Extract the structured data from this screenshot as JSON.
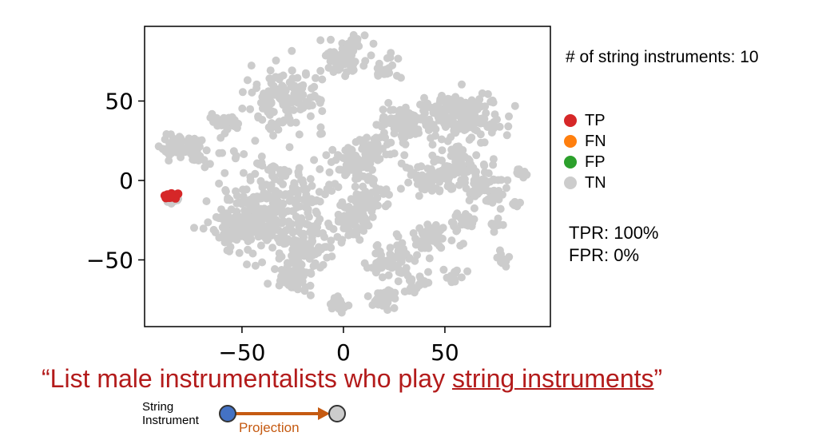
{
  "chart_data": {
    "type": "scatter",
    "title": "",
    "xlabel": "",
    "ylabel": "",
    "xlim": [
      -98,
      102
    ],
    "ylim": [
      -92,
      97
    ],
    "xticks": [
      -50,
      0,
      50
    ],
    "yticks": [
      50,
      0,
      -50
    ],
    "xtick_labels": [
      "−50",
      "0",
      "50"
    ],
    "ytick_labels": [
      "50",
      "0",
      "−50"
    ],
    "grid": false,
    "legend_placement": "right",
    "series": [
      {
        "name": "TP",
        "color": "#d62728",
        "clusters": [
          {
            "x": -85,
            "y": -10,
            "r": 2.5,
            "n": 12
          }
        ]
      },
      {
        "name": "FN",
        "color": "#ff7f0e",
        "clusters": []
      },
      {
        "name": "FP",
        "color": "#2ca02c",
        "clusters": []
      },
      {
        "name": "TN",
        "color": "#cccccc",
        "clusters": [
          {
            "x": 0,
            "y": 78,
            "r": 10,
            "n": 90
          },
          {
            "x": 20,
            "y": 70,
            "r": 6,
            "n": 20
          },
          {
            "x": -28,
            "y": 52,
            "r": 16,
            "n": 140
          },
          {
            "x": -58,
            "y": 35,
            "r": 6,
            "n": 30
          },
          {
            "x": -84,
            "y": 22,
            "r": 6,
            "n": 40
          },
          {
            "x": -73,
            "y": 18,
            "r": 7,
            "n": 40
          },
          {
            "x": -84,
            "y": -12,
            "r": 3,
            "n": 12
          },
          {
            "x": 30,
            "y": 35,
            "r": 10,
            "n": 80
          },
          {
            "x": 50,
            "y": 42,
            "r": 12,
            "n": 90
          },
          {
            "x": 65,
            "y": 40,
            "r": 12,
            "n": 90
          },
          {
            "x": 55,
            "y": 10,
            "r": 12,
            "n": 80
          },
          {
            "x": 40,
            "y": 0,
            "r": 8,
            "n": 40
          },
          {
            "x": 70,
            "y": -5,
            "r": 8,
            "n": 50
          },
          {
            "x": 5,
            "y": 10,
            "r": 10,
            "n": 60
          },
          {
            "x": 15,
            "y": 20,
            "r": 8,
            "n": 40
          },
          {
            "x": -35,
            "y": -15,
            "r": 22,
            "n": 260
          },
          {
            "x": -50,
            "y": -30,
            "r": 12,
            "n": 90
          },
          {
            "x": -20,
            "y": -40,
            "r": 12,
            "n": 90
          },
          {
            "x": -25,
            "y": -62,
            "r": 8,
            "n": 60
          },
          {
            "x": 5,
            "y": -25,
            "r": 10,
            "n": 70
          },
          {
            "x": 15,
            "y": -10,
            "r": 8,
            "n": 40
          },
          {
            "x": 25,
            "y": -50,
            "r": 10,
            "n": 70
          },
          {
            "x": 45,
            "y": -35,
            "r": 8,
            "n": 50
          },
          {
            "x": -2,
            "y": -78,
            "r": 4,
            "n": 25
          },
          {
            "x": 20,
            "y": -75,
            "r": 5,
            "n": 30
          },
          {
            "x": 35,
            "y": -65,
            "r": 5,
            "n": 20
          },
          {
            "x": 55,
            "y": -60,
            "r": 4,
            "n": 15
          },
          {
            "x": 78,
            "y": -50,
            "r": 3,
            "n": 12
          },
          {
            "x": 88,
            "y": 5,
            "r": 3,
            "n": 10
          },
          {
            "x": 85,
            "y": -15,
            "r": 2,
            "n": 8
          },
          {
            "x": 76,
            "y": -28,
            "r": 3,
            "n": 10
          },
          {
            "x": 60,
            "y": -25,
            "r": 5,
            "n": 20
          }
        ]
      }
    ]
  },
  "annotations": {
    "count_text": "# of string instruments: 10",
    "tpr": "TPR: 100%",
    "fpr": "FPR: 0%"
  },
  "legend": [
    {
      "label": "TP",
      "color": "#d62728"
    },
    {
      "label": "FN",
      "color": "#ff7f0e"
    },
    {
      "label": "FP",
      "color": "#2ca02c"
    },
    {
      "label": "TN",
      "color": "#cccccc"
    }
  ],
  "query": {
    "prefix": "“List male instrumentalists who play ",
    "underlined": "string instruments",
    "suffix": "”"
  },
  "projection": {
    "source_label_line1": "String",
    "source_label_line2": "Instrument",
    "arrow_label": "Projection",
    "source_color": "#4472c4",
    "target_color": "#cccccc",
    "arrow_color": "#c55a11"
  }
}
